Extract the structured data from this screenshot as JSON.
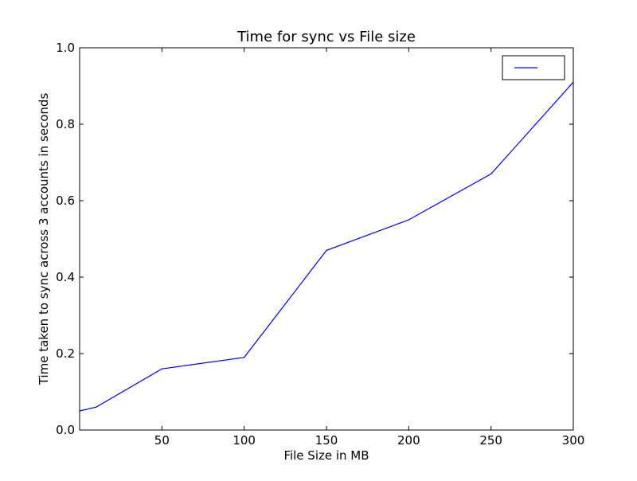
{
  "chart_data": {
    "type": "line",
    "title": "Time for sync vs File size",
    "xlabel": "File Size in MB",
    "ylabel": "Time taken to sync across 3 accounts in seconds",
    "xlim": [
      0,
      300
    ],
    "ylim": [
      0.0,
      1.0
    ],
    "x_ticks": [
      50,
      100,
      150,
      200,
      250,
      300
    ],
    "x_tick_labels": [
      "50",
      "100",
      "150",
      "200",
      "250",
      "300"
    ],
    "y_ticks": [
      0.0,
      0.2,
      0.4,
      0.6,
      0.8,
      1.0
    ],
    "y_tick_labels": [
      "0.0",
      "0.2",
      "0.4",
      "0.6",
      "0.8",
      "1.0"
    ],
    "grid": false,
    "legend": {
      "placement": "top-right",
      "entries": [
        ""
      ]
    },
    "series": [
      {
        "color": "#0000ff",
        "x": [
          0,
          10,
          50,
          100,
          150,
          200,
          250,
          300
        ],
        "y": [
          0.05,
          0.06,
          0.16,
          0.19,
          0.47,
          0.55,
          0.67,
          0.91
        ]
      }
    ]
  }
}
